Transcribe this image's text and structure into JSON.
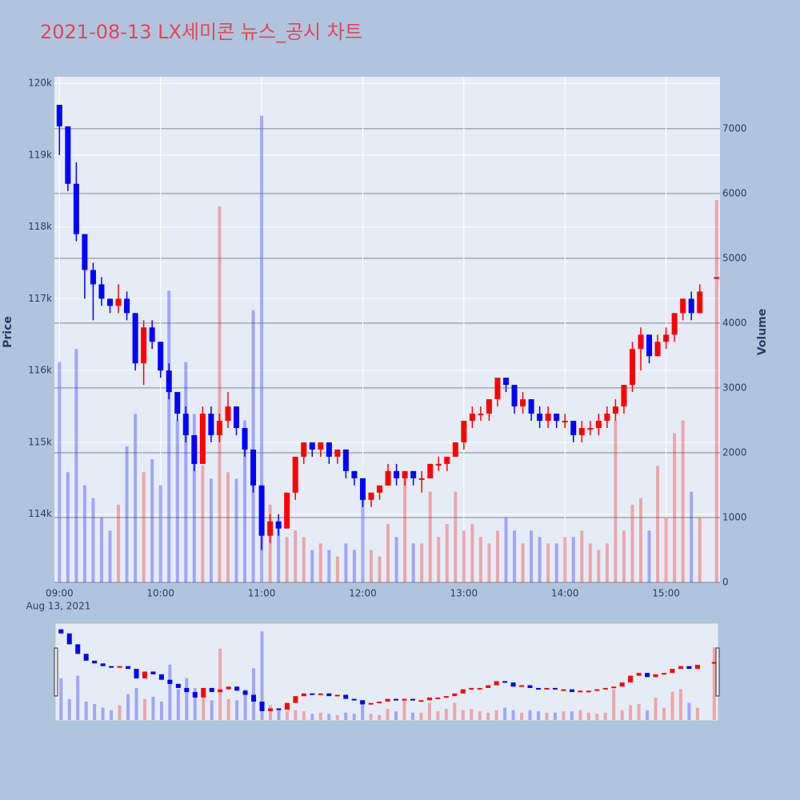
{
  "chart_data": {
    "type": "candlestick",
    "title": "2021-08-13 LX세미콘 뉴스_공시 차트",
    "y_title": "Price",
    "y2_title": "Volume",
    "x_date_label": "Aug 13, 2021",
    "increasing_color": "#ff0000",
    "decreasing_color": "#0000ff",
    "xlim": [
      "2021-08-13 08:57",
      "2021-08-13 15:32"
    ],
    "xticks": [
      {
        "value": "2021-08-13 09:00",
        "label": "09:00"
      },
      {
        "value": "2021-08-13 10:00",
        "label": "10:00"
      },
      {
        "value": "2021-08-13 11:00",
        "label": "11:00"
      },
      {
        "value": "2021-08-13 12:00",
        "label": "12:00"
      },
      {
        "value": "2021-08-13 13:00",
        "label": "13:00"
      },
      {
        "value": "2021-08-13 14:00",
        "label": "14:00"
      },
      {
        "value": "2021-08-13 15:00",
        "label": "15:00"
      }
    ],
    "ylim": [
      113050,
      120090
    ],
    "yticks": [
      {
        "value": 114000,
        "label": "114k"
      },
      {
        "value": 115000,
        "label": "115k"
      },
      {
        "value": 116000,
        "label": "116k"
      },
      {
        "value": 117000,
        "label": "117k"
      },
      {
        "value": 118000,
        "label": "118k"
      },
      {
        "value": 119000,
        "label": "119k"
      },
      {
        "value": 120000,
        "label": "120k"
      }
    ],
    "y2lim": [
      0,
      7800
    ],
    "y2ticks": [
      0,
      1000,
      2000,
      3000,
      4000,
      5000,
      6000,
      7000
    ],
    "x": [
      "2021-08-13 09:00",
      "2021-08-13 09:05",
      "2021-08-13 09:10",
      "2021-08-13 09:15",
      "2021-08-13 09:20",
      "2021-08-13 09:25",
      "2021-08-13 09:30",
      "2021-08-13 09:35",
      "2021-08-13 09:40",
      "2021-08-13 09:45",
      "2021-08-13 09:50",
      "2021-08-13 09:55",
      "2021-08-13 10:00",
      "2021-08-13 10:05",
      "2021-08-13 10:10",
      "2021-08-13 10:15",
      "2021-08-13 10:20",
      "2021-08-13 10:25",
      "2021-08-13 10:30",
      "2021-08-13 10:35",
      "2021-08-13 10:40",
      "2021-08-13 10:45",
      "2021-08-13 10:50",
      "2021-08-13 10:55",
      "2021-08-13 11:00",
      "2021-08-13 11:05",
      "2021-08-13 11:10",
      "2021-08-13 11:15",
      "2021-08-13 11:20",
      "2021-08-13 11:25",
      "2021-08-13 11:30",
      "2021-08-13 11:35",
      "2021-08-13 11:40",
      "2021-08-13 11:45",
      "2021-08-13 11:50",
      "2021-08-13 11:55",
      "2021-08-13 12:00",
      "2021-08-13 12:05",
      "2021-08-13 12:10",
      "2021-08-13 12:15",
      "2021-08-13 12:20",
      "2021-08-13 12:25",
      "2021-08-13 12:30",
      "2021-08-13 12:35",
      "2021-08-13 12:40",
      "2021-08-13 12:45",
      "2021-08-13 12:50",
      "2021-08-13 12:55",
      "2021-08-13 13:00",
      "2021-08-13 13:05",
      "2021-08-13 13:10",
      "2021-08-13 13:15",
      "2021-08-13 13:20",
      "2021-08-13 13:25",
      "2021-08-13 13:30",
      "2021-08-13 13:35",
      "2021-08-13 13:40",
      "2021-08-13 13:45",
      "2021-08-13 13:50",
      "2021-08-13 13:55",
      "2021-08-13 14:00",
      "2021-08-13 14:05",
      "2021-08-13 14:10",
      "2021-08-13 14:15",
      "2021-08-13 14:20",
      "2021-08-13 14:25",
      "2021-08-13 14:30",
      "2021-08-13 14:35",
      "2021-08-13 14:40",
      "2021-08-13 14:45",
      "2021-08-13 14:50",
      "2021-08-13 14:55",
      "2021-08-13 15:00",
      "2021-08-13 15:05",
      "2021-08-13 15:10",
      "2021-08-13 15:15",
      "2021-08-13 15:20",
      "2021-08-13 15:30"
    ],
    "open": [
      119700,
      119400,
      118600,
      117900,
      117400,
      117200,
      117000,
      116900,
      117000,
      116800,
      116100,
      116600,
      116400,
      116000,
      115700,
      115400,
      115100,
      114700,
      115400,
      115100,
      115300,
      115500,
      115200,
      114900,
      114400,
      113700,
      113900,
      113800,
      114300,
      114800,
      115000,
      114900,
      115000,
      114800,
      114900,
      114600,
      114500,
      114200,
      114300,
      114400,
      114600,
      114500,
      114600,
      114500,
      114500,
      114700,
      114700,
      114800,
      115000,
      115300,
      115400,
      115400,
      115600,
      115900,
      115800,
      115500,
      115600,
      115400,
      115300,
      115400,
      115300,
      115300,
      115100,
      115200,
      115200,
      115300,
      115400,
      115500,
      115800,
      116300,
      116500,
      116200,
      116400,
      116500,
      116800,
      117000,
      116800,
      117300
    ],
    "high": [
      119700,
      119400,
      118900,
      117900,
      117500,
      117300,
      117000,
      117200,
      117100,
      116800,
      116700,
      116700,
      116400,
      116100,
      115700,
      115500,
      115100,
      115500,
      115500,
      115400,
      115700,
      115500,
      115200,
      114900,
      114400,
      114000,
      114000,
      114300,
      114800,
      115000,
      115000,
      115000,
      115000,
      114900,
      114900,
      114600,
      114500,
      114300,
      114400,
      114700,
      114700,
      114600,
      114600,
      114600,
      114700,
      114800,
      114800,
      115000,
      115300,
      115500,
      115500,
      115600,
      115900,
      115900,
      115800,
      115700,
      115600,
      115500,
      115500,
      115400,
      115400,
      115300,
      115300,
      115300,
      115400,
      115500,
      115600,
      115800,
      116400,
      116600,
      116500,
      116500,
      116600,
      116800,
      117000,
      117100,
      117200,
      117300
    ],
    "low": [
      119000,
      118500,
      117800,
      117000,
      116700,
      116900,
      116800,
      116800,
      116700,
      116000,
      115800,
      116300,
      115900,
      115600,
      115300,
      115000,
      114600,
      114700,
      115000,
      115000,
      115200,
      115100,
      114800,
      114300,
      113500,
      113600,
      113700,
      113800,
      114200,
      114700,
      114800,
      114800,
      114700,
      114700,
      114500,
      114400,
      114100,
      114100,
      114200,
      114400,
      114400,
      114400,
      114400,
      114300,
      114500,
      114600,
      114600,
      114800,
      114900,
      115200,
      115300,
      115300,
      115500,
      115700,
      115400,
      115400,
      115300,
      115200,
      115200,
      115200,
      115200,
      115000,
      115000,
      115100,
      115100,
      115200,
      115300,
      115400,
      115700,
      116000,
      116100,
      116200,
      116300,
      116400,
      116700,
      116700,
      116800,
      117300
    ],
    "close": [
      119400,
      118600,
      117900,
      117400,
      117200,
      117000,
      116900,
      117000,
      116800,
      116100,
      116600,
      116400,
      116000,
      115700,
      115400,
      115100,
      114700,
      115400,
      115100,
      115300,
      115500,
      115200,
      114900,
      114400,
      113700,
      113900,
      113800,
      114300,
      114800,
      115000,
      114900,
      115000,
      114800,
      114900,
      114600,
      114500,
      114200,
      114300,
      114400,
      114600,
      114500,
      114600,
      114500,
      114500,
      114700,
      114700,
      114800,
      115000,
      115300,
      115400,
      115400,
      115600,
      115900,
      115800,
      115500,
      115600,
      115400,
      115300,
      115400,
      115300,
      115300,
      115100,
      115200,
      115200,
      115300,
      115400,
      115500,
      115800,
      116300,
      116500,
      116200,
      116400,
      116500,
      116800,
      117000,
      116800,
      117100,
      117300
    ],
    "volume": [
      3400,
      1700,
      3600,
      1500,
      1300,
      1000,
      800,
      1200,
      2100,
      2600,
      1700,
      1900,
      1500,
      4500,
      2500,
      3400,
      2600,
      1800,
      1600,
      5800,
      1700,
      1600,
      2500,
      4200,
      7200,
      1200,
      900,
      700,
      800,
      700,
      500,
      600,
      500,
      400,
      600,
      500,
      1600,
      500,
      400,
      900,
      700,
      1700,
      600,
      600,
      1400,
      700,
      900,
      1400,
      800,
      900,
      700,
      600,
      800,
      1000,
      800,
      600,
      800,
      700,
      600,
      600,
      700,
      700,
      800,
      600,
      500,
      600,
      2500,
      800,
      1200,
      1300,
      800,
      1800,
      1000,
      2300,
      2500,
      1400,
      1000,
      5900
    ]
  }
}
